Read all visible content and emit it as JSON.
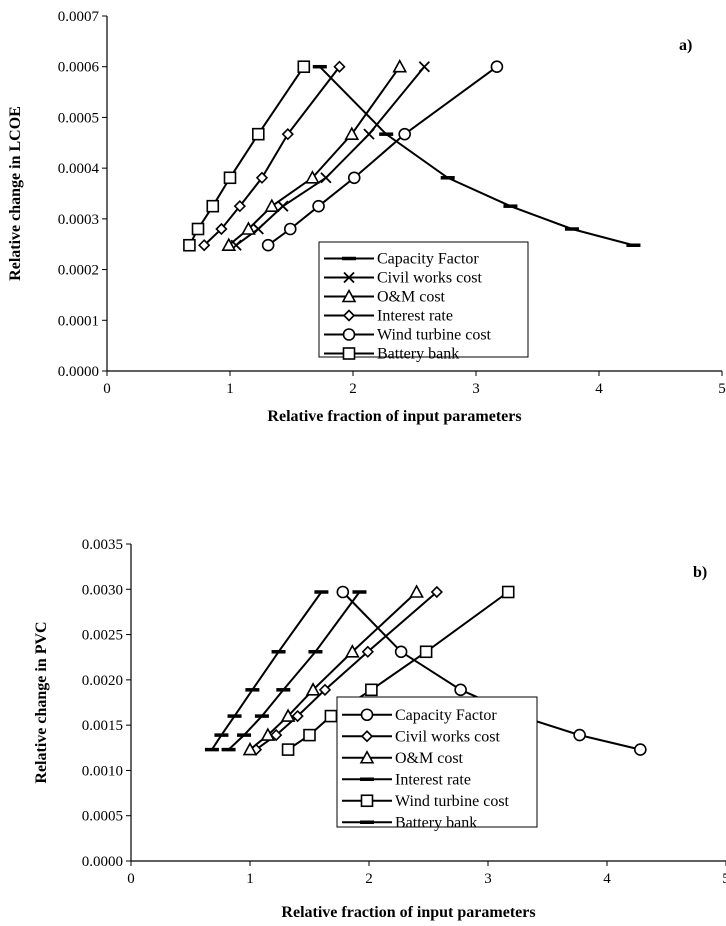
{
  "chart_data": [
    {
      "type": "line",
      "panel_label": "a)",
      "xlabel": "Relative fraction of input parameters",
      "ylabel": "Relative change in LCOE",
      "xlim": [
        0,
        5
      ],
      "ylim": [
        0,
        0.0007
      ],
      "x_ticks": [
        "0",
        "1",
        "2",
        "3",
        "4",
        "5"
      ],
      "y_ticks": [
        "0.0000",
        "0.0001",
        "0.0002",
        "0.0003",
        "0.0004",
        "0.0005",
        "0.0006",
        "0.0007"
      ],
      "grid": false,
      "legend_position": "bottom-right",
      "series": [
        {
          "name": "Capacity Factor",
          "marker": "dash",
          "x": [
            1.73,
            2.27,
            2.77,
            3.28,
            3.78,
            4.28
          ],
          "y": [
            0.0006,
            0.000467,
            0.000381,
            0.000325,
            0.00028,
            0.000248
          ]
        },
        {
          "name": "Civil works cost",
          "marker": "x",
          "x": [
            1.05,
            1.23,
            1.43,
            1.78,
            2.13,
            2.58
          ],
          "y": [
            0.000248,
            0.00028,
            0.000325,
            0.000381,
            0.000467,
            0.0006
          ]
        },
        {
          "name": "O&M cost",
          "marker": "triangle",
          "x": [
            0.99,
            1.15,
            1.34,
            1.67,
            1.99,
            2.38
          ],
          "y": [
            0.000248,
            0.00028,
            0.000325,
            0.000381,
            0.000467,
            0.0006
          ]
        },
        {
          "name": "Interest rate",
          "marker": "diamond",
          "x": [
            0.79,
            0.93,
            1.08,
            1.26,
            1.47,
            1.89
          ],
          "y": [
            0.000248,
            0.00028,
            0.000325,
            0.000381,
            0.000467,
            0.0006
          ]
        },
        {
          "name": "Wind turbine cost",
          "marker": "circle",
          "x": [
            1.31,
            1.49,
            1.72,
            2.01,
            2.42,
            3.17
          ],
          "y": [
            0.000248,
            0.00028,
            0.000325,
            0.000381,
            0.000467,
            0.0006
          ]
        },
        {
          "name": "Battery bank",
          "marker": "square",
          "x": [
            0.67,
            0.74,
            0.86,
            1.0,
            1.23,
            1.6
          ],
          "y": [
            0.000248,
            0.00028,
            0.000325,
            0.000381,
            0.000467,
            0.0006
          ]
        }
      ]
    },
    {
      "type": "line",
      "panel_label": "b)",
      "xlabel": "Relative fraction of input parameters",
      "ylabel": "Relative change in PVC",
      "xlim": [
        0,
        5
      ],
      "ylim": [
        0,
        0.0035
      ],
      "x_ticks": [
        "0",
        "1",
        "2",
        "3",
        "4",
        "5"
      ],
      "y_ticks": [
        "0.0000",
        "0.0005",
        "0.0010",
        "0.0015",
        "0.0020",
        "0.0025",
        "0.0030",
        "0.0035"
      ],
      "grid": false,
      "legend_position": "bottom-right",
      "series": [
        {
          "name": "Capacity Factor",
          "marker": "circle",
          "x": [
            1.78,
            2.27,
            2.77,
            3.27,
            3.77,
            4.28
          ],
          "y": [
            0.00297,
            0.00231,
            0.00189,
            0.0016,
            0.00139,
            0.00123
          ]
        },
        {
          "name": "Civil works cost",
          "marker": "diamond",
          "x": [
            1.05,
            1.22,
            1.4,
            1.63,
            1.99,
            2.57
          ],
          "y": [
            0.00123,
            0.00139,
            0.0016,
            0.00189,
            0.00231,
            0.00297
          ]
        },
        {
          "name": "O&M cost",
          "marker": "triangle",
          "x": [
            1.0,
            1.15,
            1.32,
            1.53,
            1.86,
            2.4
          ],
          "y": [
            0.00123,
            0.00139,
            0.0016,
            0.00189,
            0.00231,
            0.00297
          ]
        },
        {
          "name": "Interest rate",
          "marker": "dash",
          "x": [
            0.82,
            0.95,
            1.1,
            1.28,
            1.55,
            1.92
          ],
          "y": [
            0.00123,
            0.00139,
            0.0016,
            0.00189,
            0.00231,
            0.00297
          ]
        },
        {
          "name": "Wind turbine cost",
          "marker": "square",
          "x": [
            1.32,
            1.5,
            1.68,
            2.02,
            2.48,
            3.17
          ],
          "y": [
            0.00123,
            0.00139,
            0.0016,
            0.00189,
            0.00231,
            0.00297
          ]
        },
        {
          "name": "Battery bank",
          "marker": "dash",
          "x": [
            0.68,
            0.76,
            0.87,
            1.02,
            1.24,
            1.6
          ],
          "y": [
            0.00123,
            0.00139,
            0.0016,
            0.00189,
            0.00231,
            0.00297
          ]
        }
      ]
    }
  ]
}
